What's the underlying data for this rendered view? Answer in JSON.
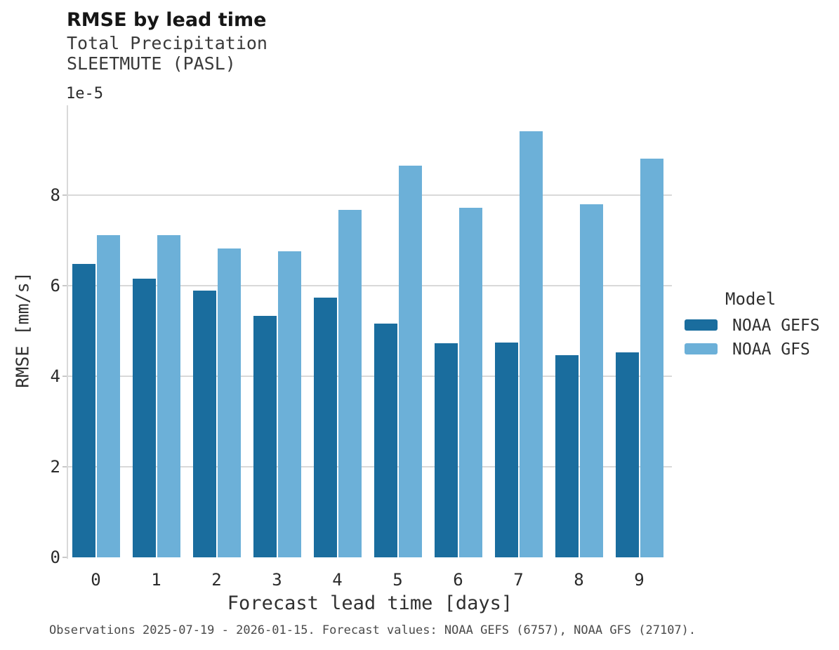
{
  "chart_data": {
    "type": "bar",
    "title": "RMSE by lead time",
    "subtitle_lines": [
      "Total Precipitation",
      "SLEETMUTE (PASL)"
    ],
    "value_offset_label": "1e-5",
    "xlabel": "Forecast lead time [days]",
    "ylabel": "RMSE [mm/s]",
    "categories": [
      "0",
      "1",
      "2",
      "3",
      "4",
      "5",
      "6",
      "7",
      "8",
      "9"
    ],
    "series": [
      {
        "name": "NOAA GEFS",
        "color": "#1a6d9e",
        "values": [
          6.48,
          6.16,
          5.89,
          5.33,
          5.74,
          5.16,
          4.72,
          4.74,
          4.47,
          4.53
        ]
      },
      {
        "name": "NOAA GFS",
        "color": "#6cb0d8",
        "values": [
          7.12,
          7.12,
          6.82,
          6.76,
          7.67,
          8.65,
          7.71,
          9.4,
          7.8,
          8.8
        ]
      }
    ],
    "units_note": "values are in 1e-5 mm/s",
    "ylim": [
      0,
      9.98
    ],
    "yticks": [
      0,
      2,
      4,
      6,
      8
    ],
    "grid": true,
    "legend": {
      "title": "Model",
      "position": "right"
    },
    "caption": "Observations 2025-07-19 - 2026-01-15. Forecast values: NOAA GEFS (6757), NOAA GFS (27107)."
  },
  "colors": {
    "grid": "#d9d9d9",
    "axis": "#cccccc",
    "title_text": "#161616",
    "body_text": "#3a3a3a",
    "tick_text": "#2b2b2b",
    "caption_text": "#4a4a4a"
  }
}
